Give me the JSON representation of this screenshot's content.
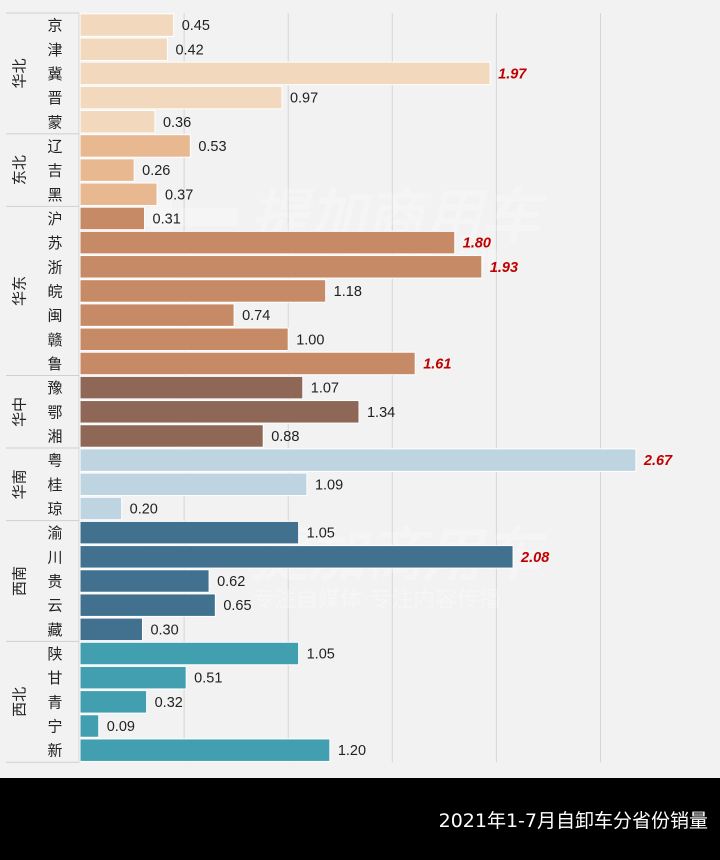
{
  "chart_data": {
    "type": "bar",
    "orientation": "horizontal",
    "title": "2021年1-7月自卸车分省份销量",
    "xlabel": "",
    "ylabel": "",
    "xlim": [
      0,
      3.0
    ],
    "x_gridlines": [
      0.5,
      1.0,
      1.5,
      2.0,
      2.5
    ],
    "grid": true,
    "highlight_threshold": 1.5,
    "highlight_color": "#c00000",
    "watermark": {
      "brand": "提加商用车",
      "slogan": "专注自媒体·专注内容传播"
    },
    "groups": [
      {
        "region": "华北",
        "color": "#f2d9be",
        "items": [
          {
            "province": "京",
            "value": 0.45
          },
          {
            "province": "津",
            "value": 0.42
          },
          {
            "province": "冀",
            "value": 1.97
          },
          {
            "province": "晋",
            "value": 0.97
          },
          {
            "province": "蒙",
            "value": 0.36
          }
        ]
      },
      {
        "region": "东北",
        "color": "#e8b890",
        "items": [
          {
            "province": "辽",
            "value": 0.53
          },
          {
            "province": "吉",
            "value": 0.26
          },
          {
            "province": "黑",
            "value": 0.37
          }
        ]
      },
      {
        "region": "华东",
        "color": "#c68a66",
        "items": [
          {
            "province": "沪",
            "value": 0.31
          },
          {
            "province": "苏",
            "value": 1.8
          },
          {
            "province": "浙",
            "value": 1.93
          },
          {
            "province": "皖",
            "value": 1.18
          },
          {
            "province": "闽",
            "value": 0.74
          },
          {
            "province": "赣",
            "value": 1.0
          },
          {
            "province": "鲁",
            "value": 1.61
          }
        ]
      },
      {
        "region": "华中",
        "color": "#8f6757",
        "items": [
          {
            "province": "豫",
            "value": 1.07
          },
          {
            "province": "鄂",
            "value": 1.34
          },
          {
            "province": "湘",
            "value": 0.88
          }
        ]
      },
      {
        "region": "华南",
        "color": "#bed4e1",
        "items": [
          {
            "province": "粤",
            "value": 2.67
          },
          {
            "province": "桂",
            "value": 1.09
          },
          {
            "province": "琼",
            "value": 0.2
          }
        ]
      },
      {
        "region": "西南",
        "color": "#41718e",
        "items": [
          {
            "province": "渝",
            "value": 1.05
          },
          {
            "province": "川",
            "value": 2.08
          },
          {
            "province": "贵",
            "value": 0.62
          },
          {
            "province": "云",
            "value": 0.65
          },
          {
            "province": "藏",
            "value": 0.3
          }
        ]
      },
      {
        "region": "西北",
        "color": "#429faf",
        "items": [
          {
            "province": "陕",
            "value": 1.05
          },
          {
            "province": "甘",
            "value": 0.51
          },
          {
            "province": "青",
            "value": 0.32
          },
          {
            "province": "宁",
            "value": 0.09
          },
          {
            "province": "新",
            "value": 1.2
          }
        ]
      }
    ]
  }
}
